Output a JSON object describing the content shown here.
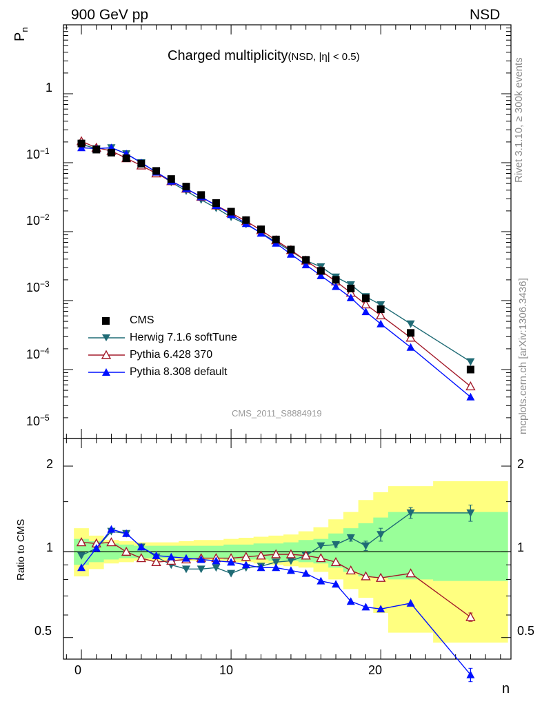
{
  "header": {
    "left": "900 GeV pp",
    "right": "NSD",
    "title_main": "Charged multiplicity",
    "title_sub": "(NSD, |η| < 0.5)",
    "analysis": "CMS_2011_S8884919"
  },
  "side_labels": {
    "rivet": "Rivet 3.1.10, ≥ 300k events",
    "mcplots": "mcplots.cern.ch [arXiv:1306.3436]"
  },
  "axes": {
    "ylabel_main": "P",
    "ylabel_main_sub": "n",
    "ylabel_ratio": "Ratio to CMS",
    "xlabel": "n",
    "x_ticks": [
      "0",
      "10",
      "20"
    ],
    "y_ticks_main": [
      {
        "base": "10",
        "exp": "−5"
      },
      {
        "base": "10",
        "exp": "−4"
      },
      {
        "base": "10",
        "exp": "−3"
      },
      {
        "base": "10",
        "exp": "−2"
      },
      {
        "base": "10",
        "exp": "−1"
      },
      {
        "base": "1",
        "exp": ""
      }
    ],
    "y_ticks_ratio": [
      "0.5",
      "1",
      "2"
    ]
  },
  "legend": [
    {
      "label": "CMS",
      "color": "#000000",
      "marker": "square"
    },
    {
      "label": "Herwig 7.1.6 softTune",
      "color": "#1f6b75",
      "marker": "triangle-down"
    },
    {
      "label": "Pythia 6.428 370",
      "color": "#a31a2a",
      "marker": "triangle-open"
    },
    {
      "label": "Pythia 8.308 default",
      "color": "#0010ff",
      "marker": "triangle-up"
    }
  ],
  "chart_data": {
    "type": "scatter",
    "x_range": [
      -1.2,
      28.7
    ],
    "main_y_log_range": [
      1e-05,
      10
    ],
    "ratio_y_log_range": [
      0.42,
      2.5
    ],
    "grid": false,
    "legend_placement": "bottom-left",
    "data": {
      "name": "CMS",
      "x": [
        0,
        1,
        2,
        3,
        4,
        5,
        6,
        7,
        8,
        9,
        10,
        11,
        12,
        13,
        14,
        15,
        16,
        17,
        18,
        19,
        20,
        22,
        26
      ],
      "y": [
        0.19,
        0.155,
        0.14,
        0.116,
        0.097,
        0.076,
        0.058,
        0.045,
        0.034,
        0.026,
        0.0195,
        0.0147,
        0.0108,
        0.0077,
        0.0055,
        0.0039,
        0.0027,
        0.002,
        0.0015,
        0.00108,
        0.00075,
        0.00034,
        0.0001
      ]
    },
    "bands": {
      "x_edges": [
        -0.5,
        0.5,
        1.5,
        2.5,
        3.5,
        4.5,
        5.5,
        6.5,
        7.5,
        8.5,
        9.5,
        10.5,
        11.5,
        12.5,
        13.5,
        14.5,
        15.5,
        16.5,
        17.5,
        18.5,
        19.5,
        20.5,
        23.5,
        28.5
      ],
      "yellow_lo": [
        0.82,
        0.87,
        0.91,
        0.92,
        0.93,
        0.93,
        0.93,
        0.93,
        0.93,
        0.93,
        0.92,
        0.92,
        0.91,
        0.9,
        0.89,
        0.88,
        0.85,
        0.8,
        0.74,
        0.69,
        0.61,
        0.52,
        0.48
      ],
      "yellow_hi": [
        1.21,
        1.14,
        1.1,
        1.09,
        1.08,
        1.08,
        1.08,
        1.09,
        1.1,
        1.1,
        1.11,
        1.12,
        1.13,
        1.14,
        1.15,
        1.18,
        1.22,
        1.3,
        1.38,
        1.52,
        1.62,
        1.7,
        1.77
      ],
      "green_lo": [
        0.9,
        0.92,
        0.94,
        0.95,
        0.95,
        0.95,
        0.95,
        0.95,
        0.95,
        0.95,
        0.94,
        0.94,
        0.94,
        0.93,
        0.93,
        0.92,
        0.91,
        0.88,
        0.85,
        0.82,
        0.81,
        0.8,
        0.79
      ],
      "green_hi": [
        1.11,
        1.09,
        1.07,
        1.06,
        1.05,
        1.05,
        1.05,
        1.05,
        1.05,
        1.05,
        1.06,
        1.06,
        1.07,
        1.07,
        1.08,
        1.1,
        1.11,
        1.16,
        1.21,
        1.26,
        1.32,
        1.38,
        1.38
      ]
    },
    "series": [
      {
        "name": "Herwig 7.1.6 softTune",
        "color": "#1f6b75",
        "marker": "triangle-down",
        "x": [
          0,
          1,
          2,
          3,
          4,
          5,
          6,
          7,
          8,
          9,
          10,
          11,
          12,
          13,
          14,
          15,
          16,
          17,
          18,
          19,
          20,
          22,
          26
        ],
        "y": [
          0.185,
          0.16,
          0.165,
          0.135,
          0.1,
          0.073,
          0.052,
          0.039,
          0.029,
          0.022,
          0.0163,
          0.0128,
          0.0096,
          0.0071,
          0.0052,
          0.0038,
          0.0031,
          0.0022,
          0.0017,
          0.00114,
          0.00087,
          0.00046,
          0.00013
        ],
        "ratio": [
          0.97,
          1.03,
          1.18,
          1.16,
          1.04,
          0.96,
          0.9,
          0.87,
          0.87,
          0.88,
          0.84,
          0.88,
          0.89,
          0.92,
          0.93,
          0.97,
          1.05,
          1.06,
          1.12,
          1.05,
          1.15,
          1.37,
          1.37
        ],
        "ratio_err": [
          0,
          0,
          0,
          0,
          0,
          0,
          0,
          0,
          0,
          0,
          0,
          0,
          0,
          0,
          0,
          0,
          0,
          0.02,
          0.03,
          0.04,
          0.06,
          0.06,
          0.09
        ]
      },
      {
        "name": "Pythia 6.428 370",
        "color": "#a31a2a",
        "marker": "triangle-open",
        "x": [
          0,
          1,
          2,
          3,
          4,
          5,
          6,
          7,
          8,
          9,
          10,
          11,
          12,
          13,
          14,
          15,
          16,
          17,
          18,
          19,
          20,
          22,
          26
        ],
        "y": [
          0.205,
          0.165,
          0.148,
          0.116,
          0.091,
          0.07,
          0.054,
          0.042,
          0.032,
          0.024,
          0.0186,
          0.0142,
          0.0105,
          0.0075,
          0.0054,
          0.0038,
          0.0027,
          0.0019,
          0.0013,
          0.00088,
          0.00061,
          0.00029,
          5.7e-05
        ],
        "ratio": [
          1.08,
          1.07,
          1.08,
          1.0,
          0.95,
          0.92,
          0.93,
          0.94,
          0.95,
          0.95,
          0.95,
          0.96,
          0.97,
          0.98,
          0.98,
          0.97,
          0.95,
          0.92,
          0.86,
          0.82,
          0.81,
          0.84,
          0.59
        ],
        "ratio_err": [
          0,
          0,
          0,
          0,
          0,
          0,
          0,
          0,
          0,
          0,
          0,
          0,
          0,
          0,
          0,
          0,
          0,
          0,
          0,
          0,
          0,
          0,
          0.02
        ]
      },
      {
        "name": "Pythia 8.308 default",
        "color": "#0010ff",
        "marker": "triangle-up",
        "x": [
          0,
          1,
          2,
          3,
          4,
          5,
          6,
          7,
          8,
          9,
          10,
          11,
          12,
          13,
          14,
          15,
          16,
          17,
          18,
          19,
          20,
          22,
          26
        ],
        "y": [
          0.165,
          0.16,
          0.165,
          0.135,
          0.1,
          0.073,
          0.054,
          0.042,
          0.032,
          0.024,
          0.0177,
          0.0131,
          0.0095,
          0.0068,
          0.0047,
          0.0033,
          0.0023,
          0.0016,
          0.0011,
          0.00069,
          0.00046,
          0.00021,
          4e-05
        ],
        "ratio": [
          0.88,
          1.03,
          1.2,
          1.16,
          1.04,
          0.97,
          0.96,
          0.95,
          0.94,
          0.93,
          0.92,
          0.9,
          0.88,
          0.88,
          0.86,
          0.84,
          0.79,
          0.77,
          0.67,
          0.64,
          0.63,
          0.66,
          0.37
        ],
        "ratio_err": [
          0,
          0,
          0,
          0,
          0,
          0,
          0,
          0,
          0,
          0,
          0,
          0,
          0,
          0,
          0,
          0,
          0,
          0,
          0,
          0,
          0,
          0,
          0.02
        ]
      }
    ]
  }
}
